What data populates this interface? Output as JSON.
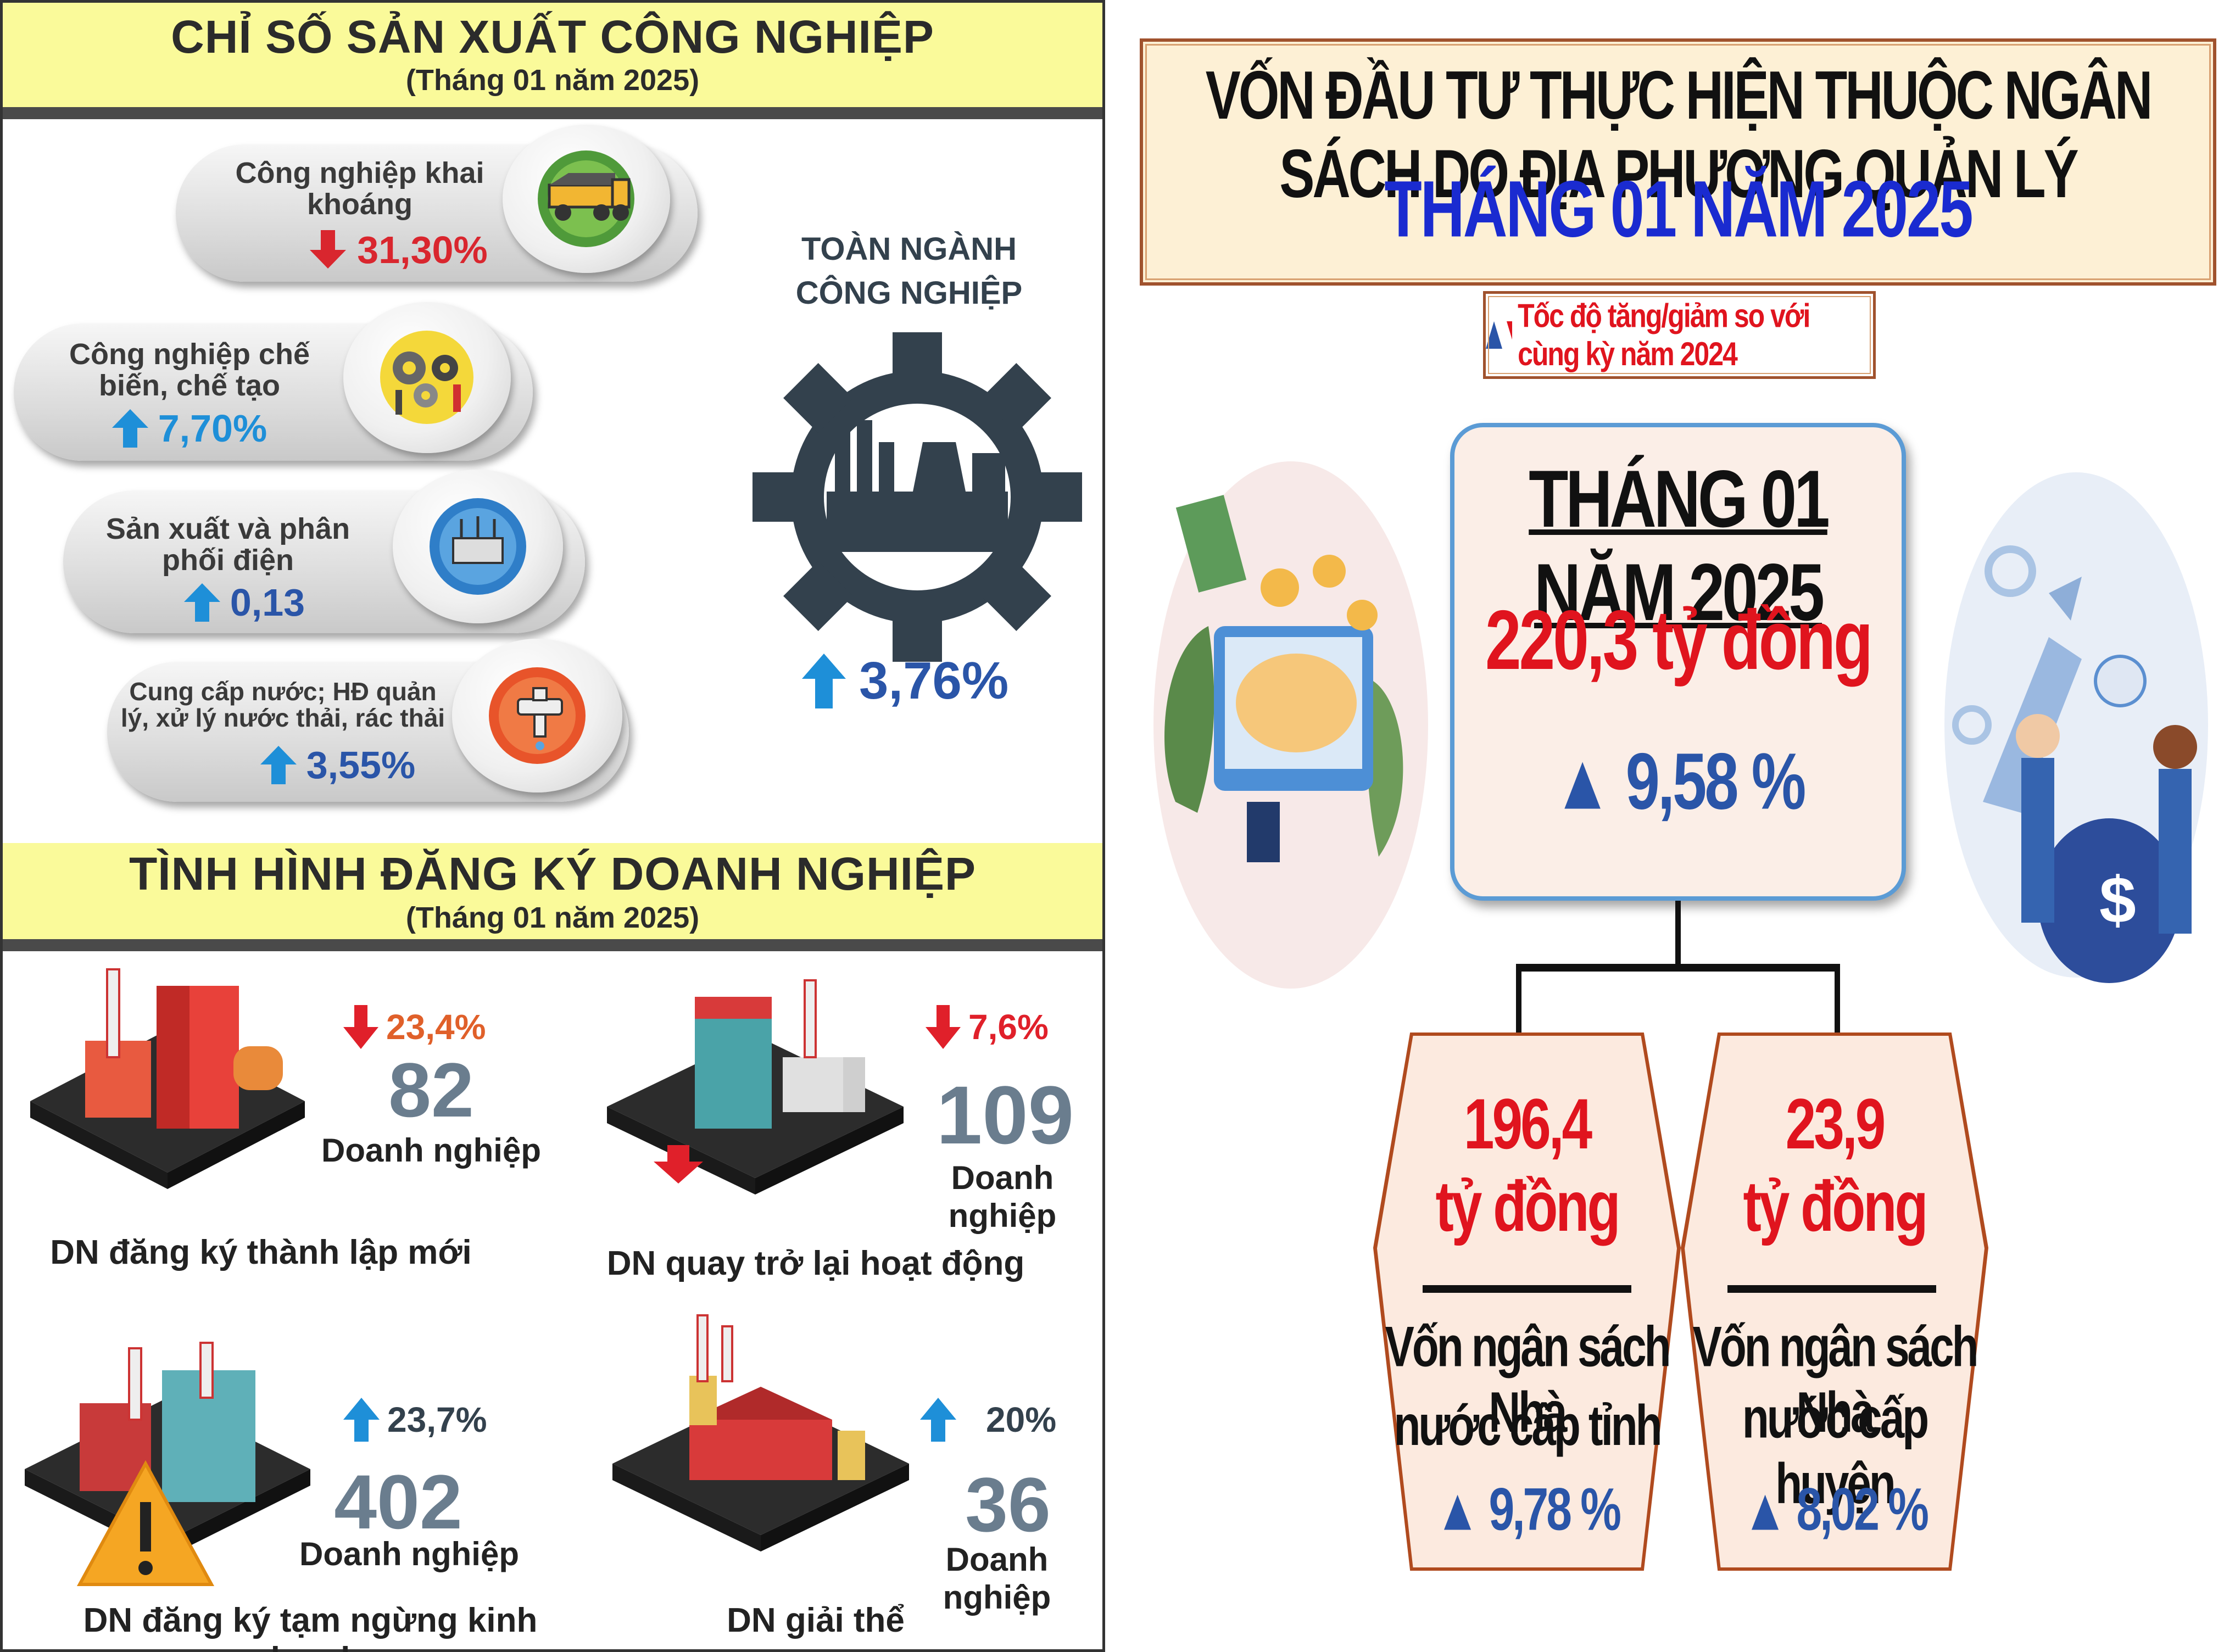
{
  "industry": {
    "title": "CHỈ SỐ SẢN XUẤT CÔNG NGHIỆP",
    "period": "(Tháng 01 năm 2025)",
    "sectors": [
      {
        "label": "Công nghiệp khai khoáng",
        "value": "31,30%",
        "direction": "down",
        "icon": "mining-truck-icon"
      },
      {
        "label": "Công nghiệp chế biến, chế tạo",
        "value": "7,70%",
        "direction": "up",
        "icon": "gears-tools-icon"
      },
      {
        "label": "Sản xuất và phân phối điện",
        "value": "0,13",
        "direction": "up",
        "icon": "power-station-icon"
      },
      {
        "label": "Cung cấp nước; HĐ quản lý, xử lý nước thải, rác thải",
        "value": "3,55%",
        "direction": "up",
        "icon": "water-tap-icon"
      }
    ],
    "total": {
      "label_line1": "TOÀN NGÀNH",
      "label_line2": "CÔNG NGHIỆP",
      "value": "3,76%",
      "direction": "up",
      "icon": "factory-gear-icon"
    }
  },
  "enterprise": {
    "title": "TÌNH HÌNH ĐĂNG KÝ DOANH NGHIỆP",
    "period": "(Tháng 01 năm 2025)",
    "items": [
      {
        "label": "DN đăng ký thành lập mới",
        "count": "82",
        "unit": "Doanh nghiệp",
        "pct": "23,4%",
        "direction": "down"
      },
      {
        "label": "DN quay trở lại hoạt động",
        "count": "109",
        "unit": "Doanh nghiệp",
        "pct": "7,6%",
        "direction": "down"
      },
      {
        "label": "DN đăng ký tạm ngừng kinh doanh",
        "count": "402",
        "unit": "Doanh nghiệp",
        "pct": "23,7%",
        "direction": "up"
      },
      {
        "label": "DN giải thể",
        "count": "36",
        "unit": "Doanh nghiệp",
        "pct": "20%",
        "direction": "up"
      }
    ]
  },
  "investment": {
    "title": "VỐN ĐẦU TƯ THỰC HIỆN THUỘC NGÂN SÁCH DO ĐỊA PHƯƠNG QUẢN LÝ",
    "month": "THÁNG 01 NĂM 2025",
    "legend": "Tốc độ tăng/giảm so với cùng kỳ năm 2024",
    "main": {
      "heading": "THÁNG 01 NĂM 2025",
      "amount": "220,3 tỷ đồng",
      "change": "▲ 9,58 %"
    },
    "branches": [
      {
        "value": "196,4",
        "unit": "tỷ đồng",
        "label_line1": "Vốn ngân sách Nhà",
        "label_line2": "nước cấp tỉnh",
        "change": "▲ 9,78 %"
      },
      {
        "value": "23,9",
        "unit": "tỷ đồng",
        "label_line1": "Vốn ngân sách Nhà",
        "label_line2": "nước cấp huyện",
        "change": "▲ 8,02 %"
      }
    ]
  },
  "colors": {
    "yellow_band": "#fafa9a",
    "down_red": "#d9262e",
    "up_blue": "#1e8fd8",
    "value_blue": "#2a55a8",
    "dark_slate": "#33414d",
    "number_gray": "#6a7d8e",
    "invest_red": "#e0141e",
    "invest_title_blue": "#1a2bd0",
    "hex_brown": "#b04a1e"
  }
}
